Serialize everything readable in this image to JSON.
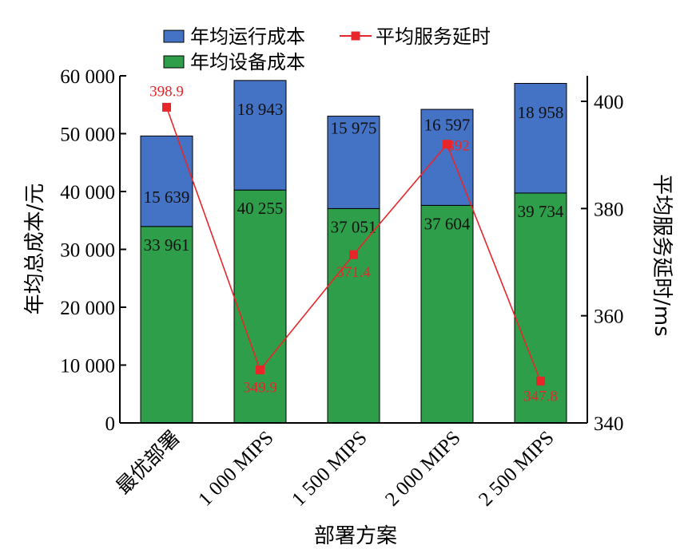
{
  "chart_data": {
    "type": "bar",
    "categories": [
      "最优部署",
      "1 000 MIPS",
      "1 500 MIPS",
      "2 000 MIPS",
      "2 500 MIPS"
    ],
    "series": [
      {
        "name": "年均设备成本",
        "values": [
          33961,
          40255,
          37051,
          37604,
          39734
        ],
        "labels": [
          "33 961",
          "40 255",
          "37 051",
          "37 604",
          "39 734"
        ],
        "color": "#2e9e4a",
        "axis": "left",
        "kind": "stacked-bar"
      },
      {
        "name": "年均运行成本",
        "values": [
          15639,
          18943,
          15975,
          16597,
          18958
        ],
        "labels": [
          "15 639",
          "18 943",
          "15 975",
          "16 597",
          "18 958"
        ],
        "color": "#4472c4",
        "axis": "left",
        "kind": "stacked-bar"
      },
      {
        "name": "平均服务延时",
        "values": [
          398.9,
          349.9,
          371.4,
          392,
          347.8
        ],
        "labels": [
          "398.9",
          "349.9",
          "371.4",
          "392",
          "347.8"
        ],
        "color": "#e8262a",
        "axis": "right",
        "kind": "line"
      }
    ],
    "xlabel": "部署方案",
    "ylabel": "年均总成本/元",
    "y2label": "平均服务延时/ms",
    "ylim": [
      0,
      60000
    ],
    "y2lim": [
      340,
      405
    ],
    "yticks": [
      0,
      10000,
      20000,
      30000,
      40000,
      50000,
      60000
    ],
    "ytick_labels": [
      "0",
      "10 000",
      "20 000",
      "30 000",
      "40 000",
      "50 000",
      "60 000"
    ],
    "y2ticks": [
      340,
      360,
      380,
      400
    ],
    "y2tick_labels": [
      "340",
      "360",
      "380",
      "400"
    ],
    "legend": {
      "placement": "top",
      "order": [
        "年均运行成本",
        "平均服务延时",
        "年均设备成本"
      ]
    },
    "grid": false
  }
}
